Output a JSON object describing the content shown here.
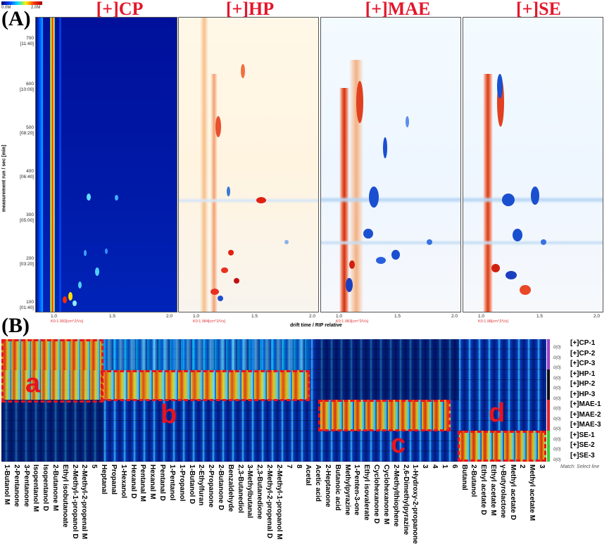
{
  "panelA": {
    "letter": "(A)",
    "scale_min": "0.0M",
    "scale_max": "2.0M",
    "samples": [
      "[+]CP",
      "[+]HP",
      "[+]MAE",
      "[+]SE"
    ],
    "ylabel": "measurement run / sec [min]",
    "yticks": [
      {
        "v": "700",
        "t": "[11:40]"
      },
      {
        "v": "600",
        "t": "[10:00]"
      },
      {
        "v": "500",
        "t": "[08:20]"
      },
      {
        "v": "400",
        "t": "[06:40]"
      },
      {
        "v": "300",
        "t": "[05:00]"
      },
      {
        "v": "200",
        "t": "[03:20]"
      },
      {
        "v": "100",
        "t": "[01:40]"
      }
    ],
    "xticks": [
      "1.0",
      "1.5",
      "2.0"
    ],
    "ko_labels": [
      "K0:1.992[cm^2/Vs]",
      "K0:1.984[cm^2/Vs]",
      "K0:1.983[cm^2/Vs]",
      "K0:1.98[cm^2/Vs]"
    ],
    "xlabel": "drift time / RIP relative"
  },
  "panelB": {
    "letter": "(B)",
    "rows": [
      "[+]CP-1",
      "[+]CP-2",
      "[+]CP-3",
      "[+]HP-1",
      "[+]HP-2",
      "[+]HP-3",
      "[+]MAE-1",
      "[+]MAE-2",
      "[+]MAE-3",
      "[+]SE-1",
      "[+]SE-2",
      "[+]SE-3"
    ],
    "zero_label": "0(0)",
    "match_text": "Match: Select line",
    "regions": [
      "a",
      "b",
      "c",
      "d"
    ],
    "compounds": [
      "1-Butanol M",
      "2-Pentanone",
      "3-Pentanone",
      "Isopentanol M",
      "Isopentanol D",
      "2-Butanone M",
      "Ethyl isobutanoate",
      "2-Methyl-1-propanol D",
      "2-Methyl-2-propenal M",
      "5",
      "Heptanal",
      "Propanal",
      "1-Hexanol",
      "Hexanal D",
      "Pentanal M",
      "Hexanal M",
      "Pentanal D",
      "1-Pentanol",
      "1-Propanol",
      "1-Butanol D",
      "2-Ethylfuran",
      "2-Propanone",
      "2-Butanone D",
      "Benzaldehyde",
      "2,3-Butanediol",
      "3-Methylbutanal",
      "2,3-Butanedione",
      "2-Methyl-2-propenal D",
      "2-Methyl-1-propanol M",
      "7",
      "8",
      "Acetal",
      "Acetic acid",
      "2-Heptanone",
      "Butanoic acid",
      "Methylpyrazine",
      "1-Penten-3-one",
      "Ethyl isovalerate",
      "Cyclohexanone D",
      "Cyclohexanone M",
      "2-Methylthiophene",
      "2,6-Dimethylpyrazine",
      "1-Hydroxy-2-propanone",
      "3",
      "4",
      "1",
      "6",
      "Butanal",
      "2-Butanol",
      "Ethyl acetate D",
      "Ethyl acetate M",
      "γ-Butyrolactone",
      "Methyl acetate D",
      "2",
      "Methyl acetate M",
      "3"
    ]
  }
}
